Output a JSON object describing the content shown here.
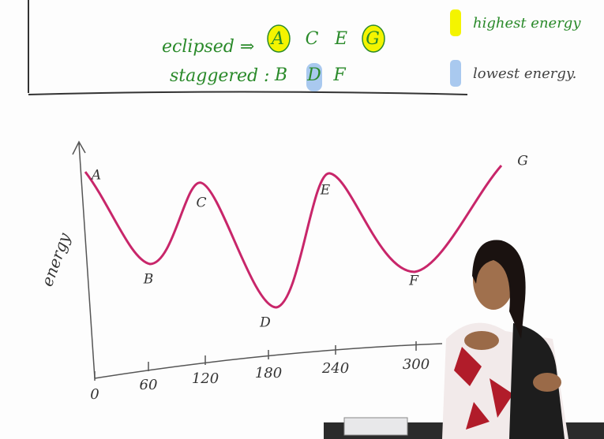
{
  "header": {
    "eclipsed_label": "eclipsed ⇒",
    "eclipsed": [
      "A",
      "C",
      "E",
      "G"
    ],
    "staggered_label": "staggered :",
    "staggered": [
      "B",
      "D",
      "F"
    ]
  },
  "legend": [
    {
      "label": "highest energy",
      "color": "#f4f400"
    },
    {
      "label": "lowest energy.",
      "color": "#a9c9ef"
    }
  ],
  "diagram": {
    "y_label": "energy",
    "x_ticks": [
      "0",
      "60",
      "120",
      "180",
      "240",
      "300"
    ],
    "points": [
      "A",
      "B",
      "C",
      "D",
      "E",
      "F",
      "G"
    ]
  }
}
